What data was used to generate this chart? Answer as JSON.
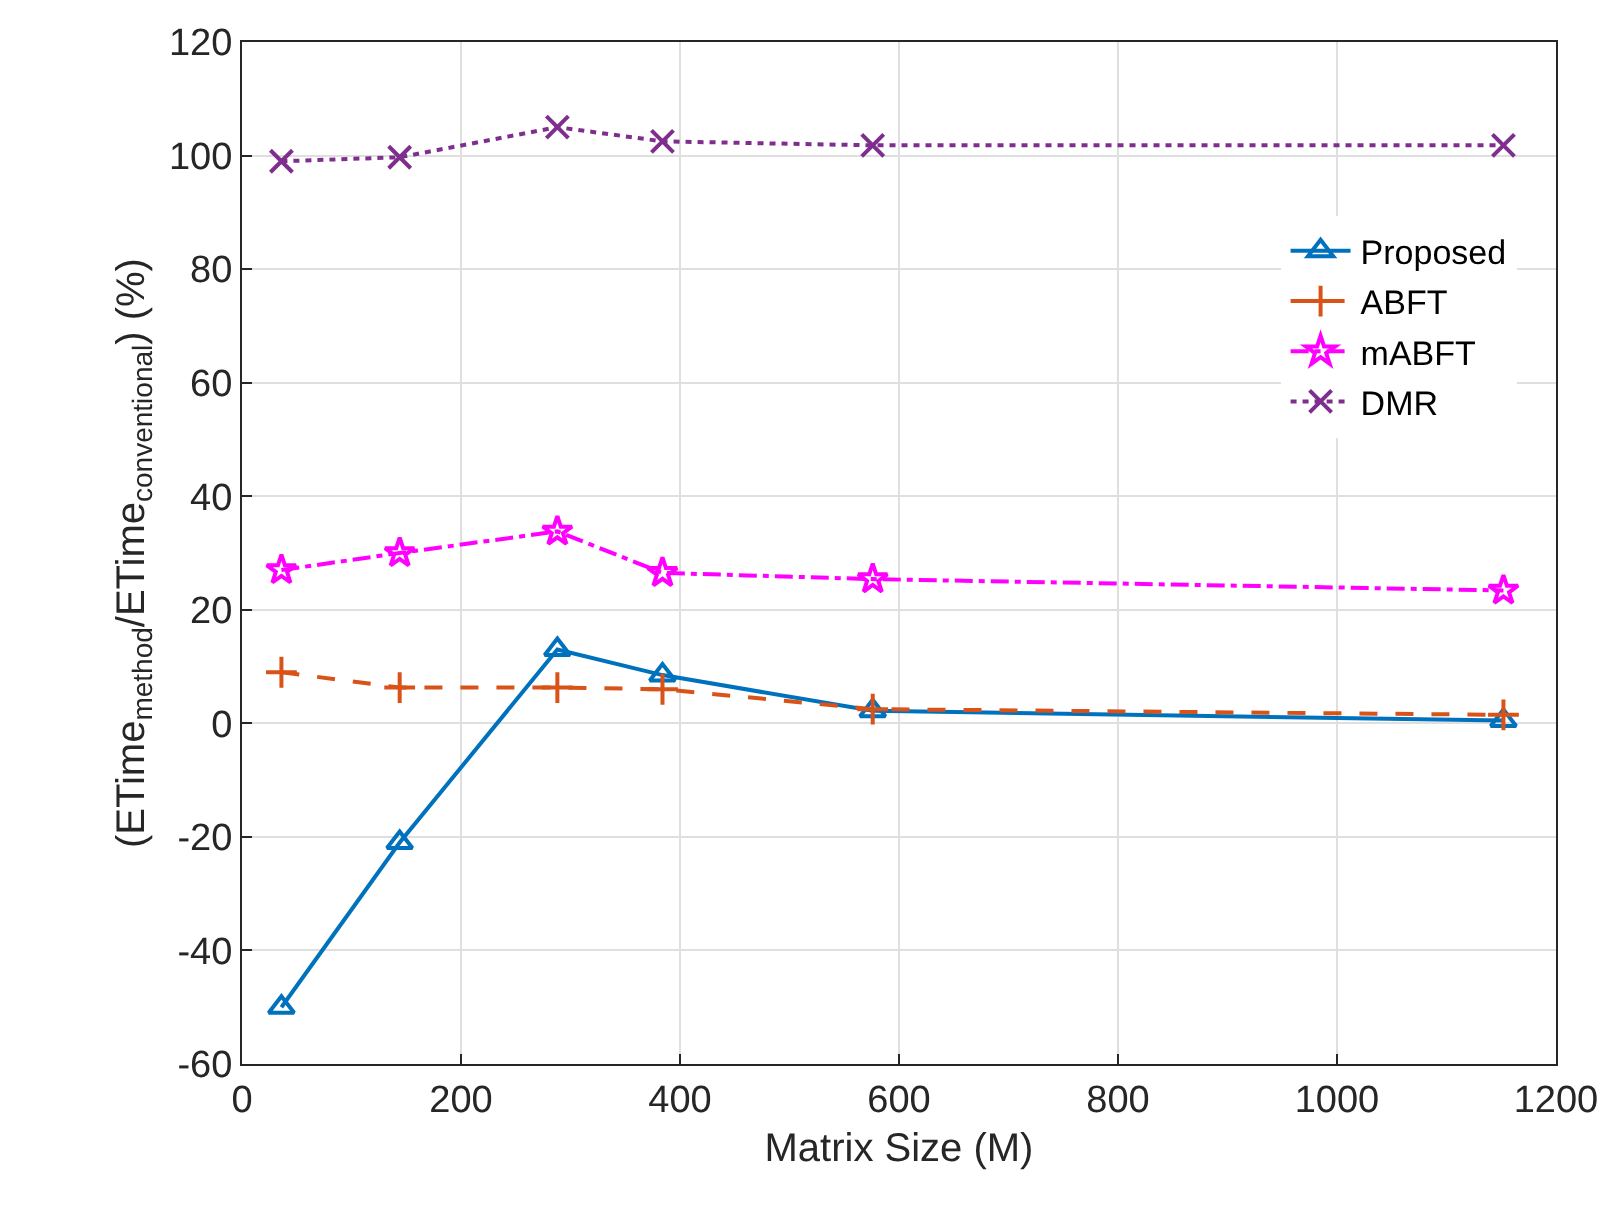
{
  "chart_data": {
    "type": "line",
    "xlabel": "Matrix Size (M)",
    "ylabel": "(ETime$_{method}$/ETime$_{conventional}$) (%)",
    "x": [
      36,
      144,
      288,
      384,
      576,
      1152
    ],
    "series": [
      {
        "name": "Proposed",
        "color": "#0072bd",
        "marker": "triangle",
        "line_style": "solid",
        "values": [
          -50,
          -21,
          13,
          8.5,
          2.2,
          0.5
        ]
      },
      {
        "name": "ABFT",
        "color": "#d95319",
        "marker": "cross",
        "line_style": "dashed",
        "values": [
          9,
          6.3,
          6.3,
          6,
          2.5,
          1.5
        ]
      },
      {
        "name": "mABFT",
        "color": "#ff00ff",
        "marker": "star",
        "line_style": "dashdot",
        "values": [
          27,
          30,
          33.8,
          26.5,
          25.4,
          23.4
        ]
      },
      {
        "name": "DMR",
        "color": "#7e2f8e",
        "marker": "x",
        "line_style": "dotted",
        "values": [
          99,
          99.7,
          105,
          102.5,
          101.8,
          101.8
        ]
      }
    ],
    "xlim": [
      0,
      1200
    ],
    "xticks": [
      0,
      200,
      400,
      600,
      800,
      1000,
      1200
    ],
    "ylim": [
      -60,
      120
    ],
    "yticks": [
      -60,
      -40,
      -20,
      0,
      20,
      40,
      60,
      80,
      100,
      120
    ],
    "grid": true,
    "legend": "top right"
  }
}
